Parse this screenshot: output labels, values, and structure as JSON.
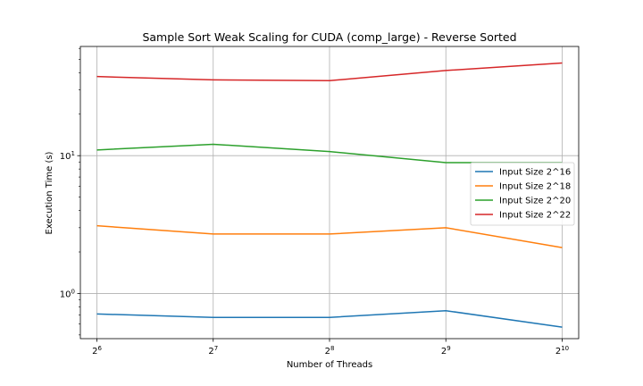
{
  "chart_data": {
    "type": "line",
    "title": "Sample Sort Weak Scaling for CUDA (comp_large) - Reverse Sorted",
    "xlabel": "Number of Threads",
    "ylabel": "Execution Time (s)",
    "x_scale": "log2",
    "y_scale": "log10",
    "x": [
      64,
      128,
      256,
      512,
      1024
    ],
    "xticks": [
      {
        "base": "2",
        "exp": "6"
      },
      {
        "base": "2",
        "exp": "7"
      },
      {
        "base": "2",
        "exp": "8"
      },
      {
        "base": "2",
        "exp": "9"
      },
      {
        "base": "2",
        "exp": "10"
      }
    ],
    "yticks": [
      {
        "value": 1,
        "base": "10",
        "exp": "0"
      },
      {
        "value": 10,
        "base": "10",
        "exp": "1"
      }
    ],
    "xlim": [
      58,
      1130
    ],
    "ylim": [
      0.47,
      62
    ],
    "grid": true,
    "legend_position": "center-right",
    "series": [
      {
        "name": "Input Size 2^16",
        "color": "#1f77b4",
        "values": [
          0.71,
          0.67,
          0.67,
          0.75,
          0.57
        ]
      },
      {
        "name": "Input Size 2^18",
        "color": "#ff7f0e",
        "values": [
          3.1,
          2.7,
          2.7,
          3.0,
          2.15
        ]
      },
      {
        "name": "Input Size 2^20",
        "color": "#2ca02c",
        "values": [
          11.0,
          12.1,
          10.7,
          8.9,
          8.9
        ]
      },
      {
        "name": "Input Size 2^22",
        "color": "#d62728",
        "values": [
          37.5,
          35.5,
          35.0,
          41.5,
          47.0
        ]
      }
    ]
  }
}
